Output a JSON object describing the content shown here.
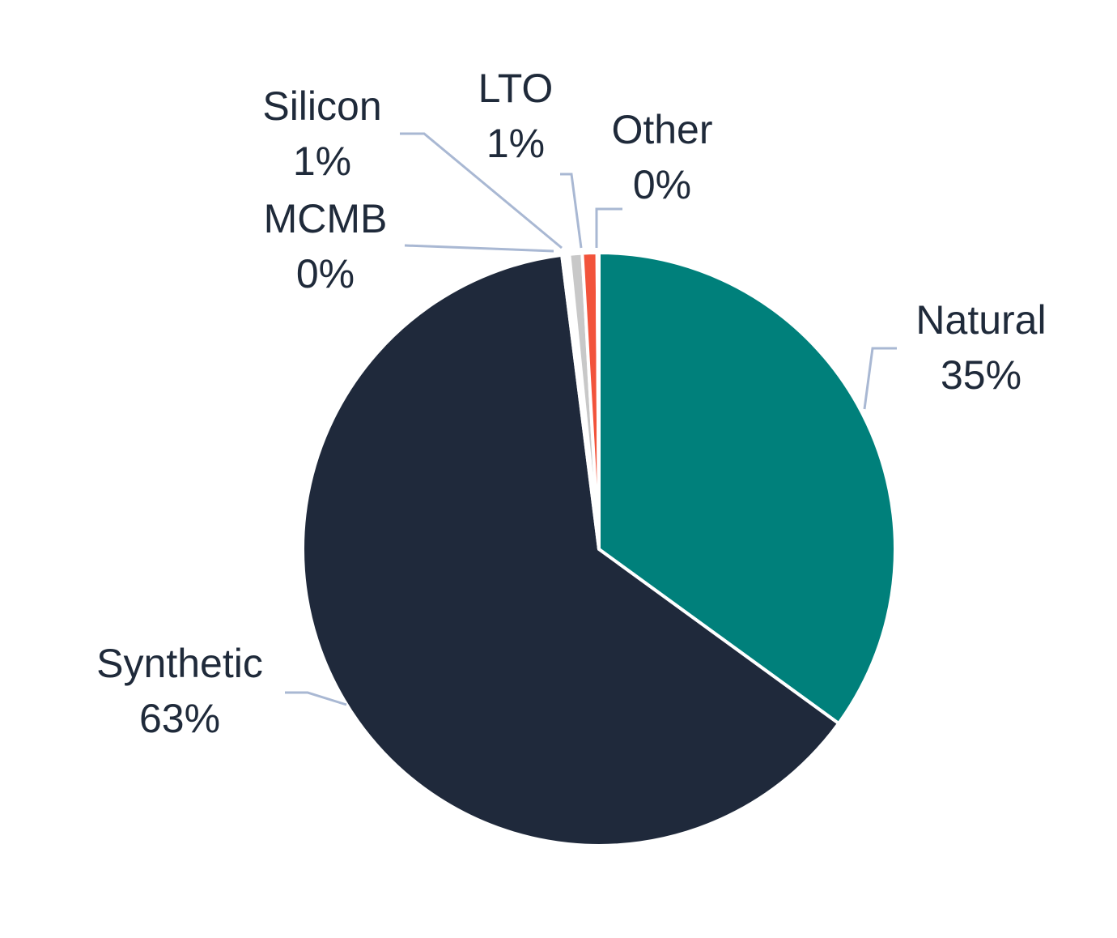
{
  "chart_data": {
    "type": "pie",
    "title": "",
    "start_angle_deg": 0,
    "direction": "clockwise",
    "slices": [
      {
        "name": "Natural",
        "value": 35,
        "label": "35%",
        "color": "#00807b"
      },
      {
        "name": "Synthetic",
        "value": 63,
        "label": "63%",
        "color": "#1f293b"
      },
      {
        "name": "MCMB",
        "value": 0.4,
        "label": "0%",
        "color": "#ffffff"
      },
      {
        "name": "Silicon",
        "value": 0.7,
        "label": "1%",
        "color": "#c8c8c8"
      },
      {
        "name": "LTO",
        "value": 0.8,
        "label": "1%",
        "color": "#f2533b"
      },
      {
        "name": "Other",
        "value": 0.1,
        "label": "0%",
        "color": "#ffffff"
      }
    ],
    "leader_line_color": "#a9b8d3",
    "label_color": "#1f2a3a",
    "slice_border_color": "#ffffff"
  }
}
